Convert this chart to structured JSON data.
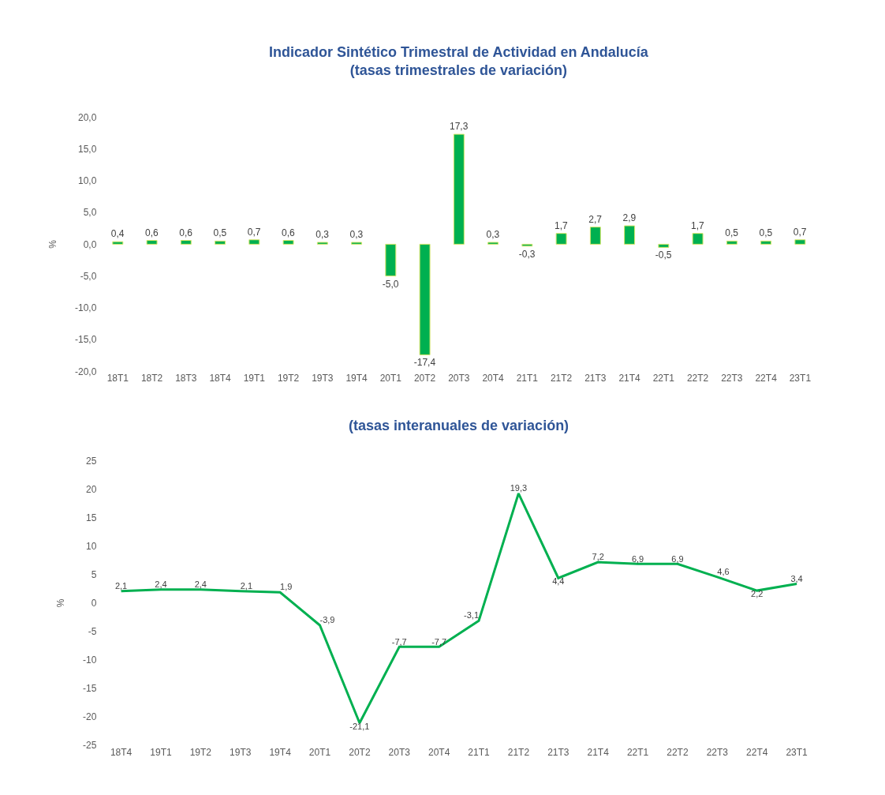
{
  "chart_data": [
    {
      "type": "bar",
      "title": "Indicador Sintético Trimestral de Actividad en Andalucía",
      "subtitle": "(tasas trimestrales de variación)",
      "ylabel": "%",
      "categories": [
        "18T1",
        "18T2",
        "18T3",
        "18T4",
        "19T1",
        "19T2",
        "19T3",
        "19T4",
        "20T1",
        "20T2",
        "20T3",
        "20T4",
        "21T1",
        "21T2",
        "21T3",
        "21T4",
        "22T1",
        "22T2",
        "22T3",
        "22T4",
        "23T1"
      ],
      "values": [
        0.4,
        0.6,
        0.6,
        0.5,
        0.7,
        0.6,
        0.3,
        0.3,
        -5.0,
        -17.4,
        17.3,
        0.3,
        -0.3,
        1.7,
        2.7,
        2.9,
        -0.5,
        1.7,
        0.5,
        0.5,
        0.7
      ],
      "value_labels": [
        "0,4",
        "0,6",
        "0,6",
        "0,5",
        "0,7",
        "0,6",
        "0,3",
        "0,3",
        "-5,0",
        "-17,4",
        "17,3",
        "0,3",
        "-0,3",
        "1,7",
        "2,7",
        "2,9",
        "-0,5",
        "1,7",
        "0,5",
        "0,5",
        "0,7"
      ],
      "color": "#00b050",
      "ylim": [
        -20,
        20
      ],
      "yticks": [
        {
          "value": -20,
          "label": "-20,0"
        },
        {
          "value": -15,
          "label": "-15,0"
        },
        {
          "value": -10,
          "label": "-10,0"
        },
        {
          "value": -5,
          "label": "-5,0"
        },
        {
          "value": 0,
          "label": "0,0"
        },
        {
          "value": 5,
          "label": "5,0"
        },
        {
          "value": 10,
          "label": "10,0"
        },
        {
          "value": 15,
          "label": "15,0"
        },
        {
          "value": 20,
          "label": "20,0"
        }
      ]
    },
    {
      "type": "line",
      "title": "(tasas interanuales de variación)",
      "ylabel": "%",
      "categories": [
        "18T4",
        "19T1",
        "19T2",
        "19T3",
        "19T4",
        "20T1",
        "20T2",
        "20T3",
        "20T4",
        "21T1",
        "21T2",
        "21T3",
        "21T4",
        "22T1",
        "22T2",
        "22T3",
        "22T4",
        "23T1"
      ],
      "values": [
        2.1,
        2.4,
        2.4,
        2.1,
        1.9,
        -3.9,
        -21.1,
        -7.7,
        -7.7,
        -3.1,
        19.3,
        4.4,
        7.2,
        6.9,
        6.9,
        4.6,
        2.2,
        3.4
      ],
      "value_labels": [
        "2,1",
        "2,4",
        "2,4",
        "2,1",
        "1,9",
        "-3,9",
        "-21,1",
        "-7,7",
        "-7,7",
        "-3,1",
        "19,3",
        "4,4",
        "7,2",
        "6,9",
        "6,9",
        "4,6",
        "2,2",
        "3,4"
      ],
      "color": "#00b050",
      "ylim": [
        -25,
        25
      ],
      "yticks": [
        -25,
        -20,
        -15,
        -10,
        -5,
        0,
        5,
        10,
        15,
        20,
        25
      ],
      "line_style": "solid"
    }
  ]
}
